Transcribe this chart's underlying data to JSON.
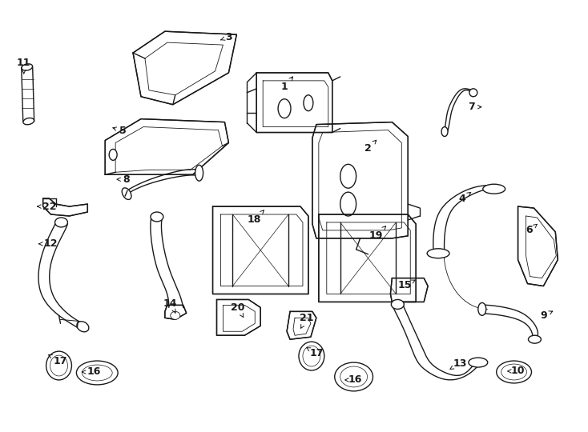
{
  "bg": "#ffffff",
  "lc": "#1a1a1a",
  "lw": 1.0,
  "fig_w": 7.34,
  "fig_h": 5.4,
  "dpi": 100,
  "labels": {
    "1": [
      355,
      108,
      368,
      92
    ],
    "2": [
      460,
      185,
      473,
      172
    ],
    "3": [
      272,
      50,
      285,
      45
    ],
    "4": [
      578,
      248,
      592,
      238
    ],
    "5": [
      152,
      163,
      136,
      158
    ],
    "6": [
      662,
      288,
      675,
      278
    ],
    "7": [
      590,
      133,
      606,
      133
    ],
    "8": [
      156,
      224,
      141,
      224
    ],
    "9": [
      680,
      395,
      695,
      388
    ],
    "10": [
      648,
      465,
      634,
      465
    ],
    "11": [
      28,
      78,
      28,
      62
    ],
    "12": [
      62,
      305,
      46,
      305
    ],
    "13": [
      575,
      455,
      562,
      463
    ],
    "14": [
      212,
      380,
      220,
      395
    ],
    "15": [
      506,
      357,
      520,
      350
    ],
    "16a": [
      116,
      466,
      100,
      466
    ],
    "16b": [
      444,
      476,
      430,
      476
    ],
    "17a": [
      74,
      452,
      58,
      444
    ],
    "17b": [
      395,
      442,
      382,
      435
    ],
    "18": [
      317,
      275,
      330,
      262
    ],
    "19": [
      470,
      295,
      483,
      282
    ],
    "20": [
      296,
      385,
      304,
      398
    ],
    "21": [
      383,
      398,
      375,
      412
    ],
    "22": [
      60,
      258,
      44,
      258
    ]
  }
}
